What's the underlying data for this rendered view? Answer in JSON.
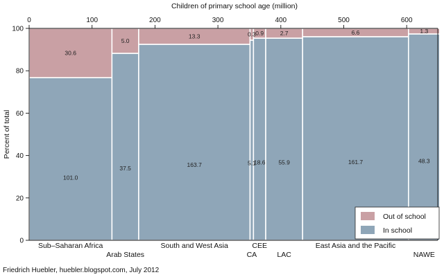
{
  "chart_data": {
    "type": "mosaic",
    "title": "",
    "xlabel": "Children of primary school age (million)",
    "ylabel": "Percent of total",
    "xlim": [
      0,
      649.4
    ],
    "ylim": [
      0,
      100
    ],
    "xticks": [
      0,
      100,
      200,
      300,
      400,
      500,
      600
    ],
    "yticks": [
      0,
      20,
      40,
      60,
      80,
      100
    ],
    "categories": [
      {
        "name": "Sub–Saharan Africa",
        "in_school": 101.0,
        "out_of_school": 30.6,
        "in_label": "101.0",
        "out_label": "30.6"
      },
      {
        "name": "Arab States",
        "in_school": 37.5,
        "out_of_school": 5.0,
        "in_label": "37.5",
        "out_label": "5.0"
      },
      {
        "name": "South and West Asia",
        "in_school": 163.7,
        "out_of_school": 13.3,
        "in_label": "163.7",
        "out_label": "13.3"
      },
      {
        "name": "CA",
        "in_school": 5.1,
        "out_of_school": 0.3,
        "in_label": "5.1",
        "out_label": "0.3"
      },
      {
        "name": "CEE",
        "in_school": 18.6,
        "out_of_school": 0.9,
        "in_label": "18.6",
        "out_label": "0.9"
      },
      {
        "name": "LAC",
        "in_school": 55.9,
        "out_of_school": 2.7,
        "in_label": "55.9",
        "out_label": "2.7"
      },
      {
        "name": "East Asia and the Pacific",
        "in_school": 161.7,
        "out_of_school": 6.6,
        "in_label": "161.7",
        "out_label": "6.6"
      },
      {
        "name": "NAWE",
        "in_school": 48.3,
        "out_of_school": 1.3,
        "in_label": "48.3",
        "out_label": "1.3"
      }
    ],
    "series": [
      {
        "name": "Out of school",
        "color": "#c9a0a4"
      },
      {
        "name": "In school",
        "color": "#8fa6b8"
      }
    ],
    "legend_position": "bottom-right",
    "grid": false
  },
  "credit": "Friedrich Huebler, huebler.blogspot.com, July 2012"
}
